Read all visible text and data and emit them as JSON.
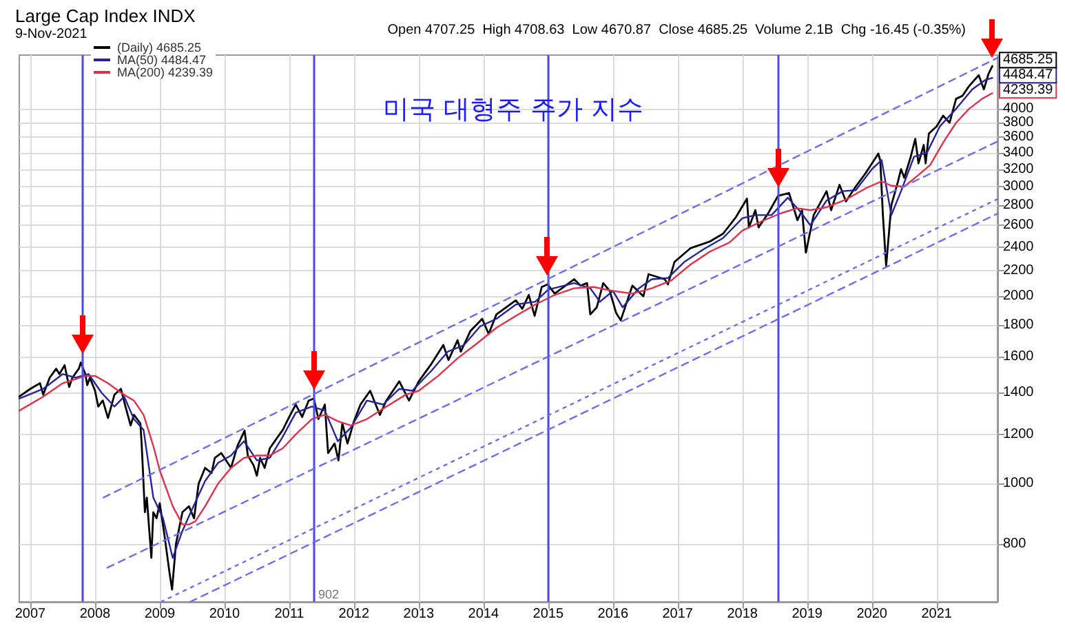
{
  "chart_data": {
    "type": "line",
    "title": "Large Cap Index INDX",
    "subtitle": "9-Nov-2021",
    "annotations": [
      "Open 4707.25  High 4708.63  Low 4670.87  Close 4685.25  Volume 2.1B  Chg -16.45 (-0.35%)",
      "미국 대형주 주가 지수",
      "902",
      "4685.25",
      "4484.47",
      "4239.39"
    ],
    "xlim": [
      2006.83,
      2021.94
    ],
    "xticks": [
      2007,
      2008,
      2009,
      2010,
      2011,
      2012,
      2013,
      2014,
      2015,
      2016,
      2017,
      2018,
      2019,
      2020,
      2021
    ],
    "ylim": [
      646,
      4880
    ],
    "yticks": [
      800,
      1000,
      1200,
      1400,
      1600,
      1800,
      2000,
      2200,
      2400,
      2600,
      2800,
      3000,
      3200,
      3400,
      3600,
      3800,
      4000
    ],
    "log": "y",
    "grid": true,
    "legend": "top left",
    "marker": "none",
    "ref_lines": [
      {
        "axis": "x",
        "value": 2007.81,
        "color": "#4a4af0"
      },
      {
        "axis": "x",
        "value": 2011.38,
        "color": "#4a4af0"
      },
      {
        "axis": "x",
        "value": 2014.99,
        "color": "#4a4af0"
      },
      {
        "axis": "x",
        "value": 2018.55,
        "color": "#4a4af0"
      }
    ],
    "series": [
      {
        "name": "(Daily) 4685.25",
        "color": "#000000",
        "x": [
          2006.83,
          2007.0,
          2007.15,
          2007.2,
          2007.3,
          2007.4,
          2007.45,
          2007.53,
          2007.6,
          2007.65,
          2007.75,
          2007.78,
          2007.85,
          2007.88,
          2007.92,
          2008.0,
          2008.05,
          2008.12,
          2008.2,
          2008.3,
          2008.4,
          2008.47,
          2008.55,
          2008.6,
          2008.7,
          2008.72,
          2008.77,
          2008.8,
          2008.87,
          2008.9,
          2008.95,
          2009.0,
          2009.07,
          2009.15,
          2009.19,
          2009.25,
          2009.35,
          2009.45,
          2009.53,
          2009.6,
          2009.7,
          2009.8,
          2009.85,
          2009.95,
          2010.05,
          2010.1,
          2010.2,
          2010.31,
          2010.36,
          2010.45,
          2010.5,
          2010.55,
          2010.62,
          2010.7,
          2010.8,
          2010.9,
          2011.0,
          2011.1,
          2011.2,
          2011.3,
          2011.38,
          2011.45,
          2011.55,
          2011.6,
          2011.7,
          2011.76,
          2011.82,
          2011.9,
          2012.0,
          2012.1,
          2012.25,
          2012.4,
          2012.5,
          2012.7,
          2012.85,
          2013.0,
          2013.2,
          2013.38,
          2013.46,
          2013.6,
          2013.65,
          2013.8,
          2013.98,
          2014.08,
          2014.2,
          2014.5,
          2014.6,
          2014.7,
          2014.79,
          2014.9,
          2014.99,
          2015.1,
          2015.4,
          2015.5,
          2015.6,
          2015.65,
          2015.75,
          2015.85,
          2015.95,
          2016.05,
          2016.12,
          2016.3,
          2016.47,
          2016.55,
          2016.8,
          2016.85,
          2016.95,
          2017.2,
          2017.5,
          2017.7,
          2017.9,
          2018.07,
          2018.1,
          2018.2,
          2018.25,
          2018.4,
          2018.55,
          2018.72,
          2018.85,
          2018.92,
          2018.98,
          2019.1,
          2019.3,
          2019.37,
          2019.5,
          2019.6,
          2019.75,
          2019.9,
          2020.1,
          2020.13,
          2020.17,
          2020.22,
          2020.3,
          2020.4,
          2020.45,
          2020.5,
          2020.6,
          2020.67,
          2020.72,
          2020.8,
          2020.83,
          2020.88,
          2021.0,
          2021.1,
          2021.2,
          2021.3,
          2021.4,
          2021.5,
          2021.65,
          2021.73,
          2021.8,
          2021.86
        ],
        "values": [
          1380,
          1420,
          1450,
          1390,
          1480,
          1530,
          1500,
          1550,
          1430,
          1480,
          1530,
          1565,
          1500,
          1440,
          1480,
          1410,
          1330,
          1360,
          1275,
          1390,
          1420,
          1330,
          1240,
          1290,
          1250,
          1160,
          900,
          950,
          760,
          900,
          880,
          930,
          830,
          720,
          676,
          800,
          900,
          920,
          880,
          1000,
          1060,
          1040,
          1100,
          1120,
          1080,
          1060,
          1150,
          1217,
          1110,
          1070,
          1030,
          1100,
          1060,
          1140,
          1180,
          1220,
          1280,
          1340,
          1280,
          1360,
          1370,
          1270,
          1340,
          1120,
          1160,
          1090,
          1250,
          1160,
          1260,
          1340,
          1410,
          1290,
          1360,
          1460,
          1360,
          1460,
          1560,
          1670,
          1580,
          1700,
          1630,
          1760,
          1840,
          1740,
          1870,
          1970,
          1910,
          2010,
          1860,
          2070,
          2090,
          2020,
          2130,
          2080,
          2100,
          1870,
          1920,
          2100,
          2040,
          1880,
          1830,
          2080,
          2000,
          2170,
          2130,
          2090,
          2270,
          2390,
          2450,
          2520,
          2680,
          2870,
          2580,
          2750,
          2580,
          2720,
          2900,
          2930,
          2650,
          2750,
          2350,
          2700,
          2950,
          2750,
          3020,
          2840,
          3000,
          3150,
          3390,
          3300,
          2700,
          2237,
          2800,
          3050,
          3200,
          3100,
          3350,
          3580,
          3270,
          3500,
          3270,
          3650,
          3750,
          3900,
          3800,
          4150,
          4200,
          4350,
          4530,
          4300,
          4550,
          4685.25
        ]
      },
      {
        "name": "MA(50) 4484.47",
        "color": "#23239c",
        "x": [
          2006.83,
          2007.2,
          2007.5,
          2007.7,
          2007.9,
          2008.1,
          2008.3,
          2008.45,
          2008.6,
          2008.75,
          2008.9,
          2009.05,
          2009.2,
          2009.35,
          2009.5,
          2009.7,
          2009.9,
          2010.1,
          2010.3,
          2010.5,
          2010.7,
          2010.9,
          2011.1,
          2011.35,
          2011.55,
          2011.75,
          2011.95,
          2012.2,
          2012.45,
          2012.7,
          2012.9,
          2013.2,
          2013.45,
          2013.7,
          2013.95,
          2014.2,
          2014.5,
          2014.8,
          2015.0,
          2015.4,
          2015.65,
          2015.8,
          2016.0,
          2016.15,
          2016.4,
          2016.6,
          2016.85,
          2017.1,
          2017.4,
          2017.7,
          2018.0,
          2018.2,
          2018.45,
          2018.7,
          2018.9,
          2019.05,
          2019.3,
          2019.55,
          2019.75,
          2020.0,
          2020.15,
          2020.3,
          2020.45,
          2020.65,
          2020.85,
          2021.05,
          2021.3,
          2021.55,
          2021.75,
          2021.86
        ],
        "values": [
          1370,
          1420,
          1500,
          1480,
          1500,
          1400,
          1330,
          1380,
          1270,
          1220,
          950,
          880,
          760,
          840,
          910,
          1010,
          1080,
          1110,
          1170,
          1090,
          1100,
          1190,
          1300,
          1330,
          1310,
          1170,
          1230,
          1360,
          1340,
          1420,
          1410,
          1520,
          1630,
          1670,
          1790,
          1840,
          1940,
          1960,
          2050,
          2100,
          2060,
          1960,
          2040,
          1920,
          2060,
          2130,
          2140,
          2270,
          2380,
          2480,
          2670,
          2700,
          2700,
          2880,
          2730,
          2600,
          2850,
          2950,
          2960,
          3200,
          3310,
          2700,
          2950,
          3350,
          3400,
          3750,
          4000,
          4300,
          4450,
          4484.47
        ]
      },
      {
        "name": "MA(200) 4239.39",
        "color": "#e0304a",
        "x": [
          2006.83,
          2007.2,
          2007.5,
          2007.85,
          2008.0,
          2008.2,
          2008.4,
          2008.6,
          2008.75,
          2008.9,
          2009.0,
          2009.2,
          2009.35,
          2009.45,
          2009.55,
          2009.7,
          2009.9,
          2010.1,
          2010.3,
          2010.5,
          2010.7,
          2010.9,
          2011.1,
          2011.35,
          2011.55,
          2011.75,
          2011.95,
          2012.2,
          2012.5,
          2012.8,
          2013.0,
          2013.3,
          2013.6,
          2013.9,
          2014.2,
          2014.5,
          2014.8,
          2015.1,
          2015.4,
          2015.7,
          2016.0,
          2016.3,
          2016.6,
          2016.9,
          2017.2,
          2017.5,
          2017.8,
          2018.0,
          2018.3,
          2018.6,
          2018.85,
          2019.05,
          2019.3,
          2019.6,
          2019.9,
          2020.15,
          2020.3,
          2020.5,
          2020.7,
          2020.9,
          2021.1,
          2021.3,
          2021.5,
          2021.7,
          2021.86
        ],
        "values": [
          1310,
          1380,
          1450,
          1490,
          1490,
          1450,
          1400,
          1360,
          1290,
          1150,
          1050,
          920,
          860,
          860,
          870,
          920,
          1000,
          1060,
          1100,
          1110,
          1110,
          1140,
          1200,
          1270,
          1290,
          1260,
          1240,
          1270,
          1330,
          1390,
          1410,
          1490,
          1590,
          1680,
          1780,
          1860,
          1940,
          2010,
          2060,
          2070,
          2040,
          2020,
          2060,
          2120,
          2250,
          2360,
          2440,
          2550,
          2640,
          2720,
          2770,
          2750,
          2780,
          2860,
          2980,
          3060,
          3010,
          3000,
          3120,
          3250,
          3530,
          3800,
          4000,
          4150,
          4239.39
        ]
      },
      {
        "color": "#6b6bf5",
        "line_style": "dashed",
        "x": [
          2008.13,
          2021.94
        ],
        "values": [
          950,
          4830
        ]
      },
      {
        "color": "#6b6bf5",
        "line_style": "dashed",
        "x": [
          2008.19,
          2021.94
        ],
        "values": [
          733,
          3545
        ]
      },
      {
        "color": "#6b6bf5",
        "line_style": "dotted",
        "x": [
          2009.02,
          2021.94
        ],
        "values": [
          646,
          2865
        ]
      },
      {
        "color": "#6b6bf5",
        "line_style": "dashed",
        "x": [
          2009.47,
          2021.94
        ],
        "values": [
          646,
          2715
        ]
      }
    ]
  }
}
